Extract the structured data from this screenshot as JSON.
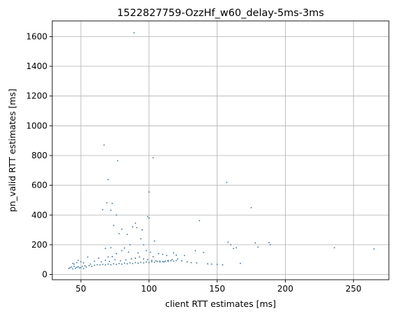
{
  "chart_data": {
    "type": "scatter",
    "title": "1522827759-OzzHf_w60_delay-5ms-3ms",
    "xlabel": "client RTT estimates [ms]",
    "ylabel": "pn_valid RTT estimates [ms]",
    "xlim": [
      29,
      276
    ],
    "ylim": [
      -35,
      1705
    ],
    "xticks": [
      50,
      100,
      150,
      200,
      250
    ],
    "yticks": [
      0,
      200,
      400,
      600,
      800,
      1000,
      1200,
      1400,
      1600
    ],
    "grid": true,
    "marker_color": "#1f77b4",
    "points": [
      [
        89,
        1625
      ],
      [
        67,
        870
      ],
      [
        103,
        785
      ],
      [
        77,
        765
      ],
      [
        70,
        638
      ],
      [
        100,
        555
      ],
      [
        157,
        620
      ],
      [
        69,
        482
      ],
      [
        73,
        478
      ],
      [
        66,
        435
      ],
      [
        72,
        432
      ],
      [
        175,
        450
      ],
      [
        76,
        400
      ],
      [
        90,
        345
      ],
      [
        99,
        390
      ],
      [
        100,
        380
      ],
      [
        74,
        330
      ],
      [
        88,
        320
      ],
      [
        80,
        305
      ],
      [
        91,
        315
      ],
      [
        137,
        362
      ],
      [
        84,
        270
      ],
      [
        78,
        275
      ],
      [
        95,
        300
      ],
      [
        86,
        200
      ],
      [
        94,
        240
      ],
      [
        104,
        225
      ],
      [
        96,
        200
      ],
      [
        72,
        180
      ],
      [
        68,
        175
      ],
      [
        82,
        178
      ],
      [
        158,
        218
      ],
      [
        160,
        200
      ],
      [
        162,
        175
      ],
      [
        164,
        180
      ],
      [
        178,
        212
      ],
      [
        180,
        185
      ],
      [
        188,
        215
      ],
      [
        189,
        200
      ],
      [
        236,
        180
      ],
      [
        265,
        172
      ],
      [
        167,
        75
      ],
      [
        150,
        68
      ],
      [
        134,
        160
      ],
      [
        140,
        148
      ],
      [
        126,
        128
      ],
      [
        118,
        145
      ],
      [
        120,
        130
      ],
      [
        110,
        135
      ],
      [
        113,
        128
      ],
      [
        107,
        140
      ],
      [
        103,
        120
      ],
      [
        101,
        150
      ],
      [
        98,
        160
      ],
      [
        92,
        145
      ],
      [
        85,
        150
      ],
      [
        80,
        160
      ],
      [
        76,
        140
      ],
      [
        73,
        120
      ],
      [
        70,
        118
      ],
      [
        63,
        110
      ],
      [
        60,
        90
      ],
      [
        55,
        118
      ],
      [
        50,
        85
      ],
      [
        48,
        95
      ],
      [
        47,
        80
      ],
      [
        45,
        70
      ],
      [
        44,
        75
      ],
      [
        52,
        78
      ],
      [
        57,
        70
      ],
      [
        65,
        85
      ],
      [
        68,
        95
      ],
      [
        71,
        88
      ],
      [
        75,
        100
      ],
      [
        79,
        92
      ],
      [
        83,
        98
      ],
      [
        87,
        105
      ],
      [
        90,
        110
      ],
      [
        93,
        118
      ],
      [
        96,
        105
      ],
      [
        99,
        100
      ],
      [
        102,
        95
      ],
      [
        105,
        92
      ],
      [
        108,
        90
      ],
      [
        111,
        85
      ],
      [
        114,
        95
      ],
      [
        117,
        100
      ],
      [
        121,
        105
      ],
      [
        124,
        92
      ],
      [
        128,
        85
      ],
      [
        131,
        80
      ],
      [
        135,
        78
      ],
      [
        143,
        72
      ],
      [
        146,
        70
      ],
      [
        154,
        65
      ],
      [
        41,
        40
      ],
      [
        42,
        45
      ],
      [
        43,
        50
      ],
      [
        44,
        38
      ],
      [
        45,
        55
      ],
      [
        46,
        42
      ],
      [
        47,
        48
      ],
      [
        48,
        52
      ],
      [
        49,
        44
      ],
      [
        50,
        46
      ],
      [
        51,
        54
      ],
      [
        52,
        40
      ],
      [
        53,
        58
      ],
      [
        54,
        50
      ],
      [
        56,
        60
      ],
      [
        58,
        55
      ],
      [
        60,
        62
      ],
      [
        62,
        66
      ],
      [
        64,
        64
      ],
      [
        66,
        68
      ],
      [
        68,
        65
      ],
      [
        70,
        70
      ],
      [
        72,
        66
      ],
      [
        74,
        72
      ],
      [
        76,
        68
      ],
      [
        78,
        74
      ],
      [
        80,
        70
      ],
      [
        82,
        76
      ],
      [
        84,
        72
      ],
      [
        86,
        78
      ],
      [
        88,
        74
      ],
      [
        90,
        80
      ],
      [
        92,
        76
      ],
      [
        94,
        82
      ],
      [
        96,
        78
      ],
      [
        98,
        84
      ],
      [
        100,
        80
      ],
      [
        102,
        86
      ],
      [
        104,
        82
      ],
      [
        106,
        88
      ],
      [
        108,
        84
      ],
      [
        110,
        86
      ],
      [
        112,
        90
      ],
      [
        114,
        88
      ],
      [
        116,
        92
      ],
      [
        118,
        90
      ],
      [
        120,
        94
      ]
    ]
  }
}
